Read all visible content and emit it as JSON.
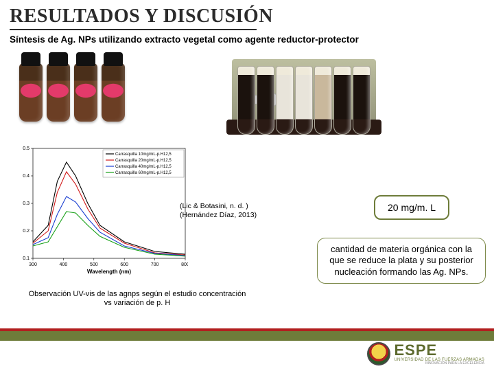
{
  "title": "RESULTADOS Y DISCUSIÓN",
  "subtitle": "Síntesis de Ag. NPs utilizando extracto vegetal como agente reductor-protector",
  "citations": {
    "line1": "(Lic & Botasini, n. d. )",
    "line2": "(Hernández Díaz, 2013)"
  },
  "concentration_label": "20 mg/m. L",
  "organic_text": "cantidad de materia orgánica con la que se reduce la plata y su posterior nucleación formando las Ag. NPs.",
  "chart_caption": "Observación UV-vis de las agnps según el estudio concentración vs variación de p. H",
  "uv_chart": {
    "type": "line",
    "xlabel": "Wavelength (nm)",
    "xlim": [
      300,
      800
    ],
    "xtick_step": 100,
    "ylim": [
      0.1,
      0.5
    ],
    "yticks": [
      0.1,
      0.2,
      0.3,
      0.4,
      0.5
    ],
    "axis_fontsize": 7,
    "line_width": 1.1,
    "background_color": "#ffffff",
    "legend_pos": "top-right",
    "series": [
      {
        "label": "Carrasquilla 10mg/mL-p.H12,5",
        "color": "#000000",
        "x": [
          300,
          350,
          380,
          410,
          440,
          480,
          520,
          600,
          700,
          800
        ],
        "y": [
          0.16,
          0.22,
          0.38,
          0.45,
          0.4,
          0.3,
          0.22,
          0.16,
          0.125,
          0.115
        ]
      },
      {
        "label": "Carrasquilla 20mg/mL-p.H12,5",
        "color": "#d11a1a",
        "x": [
          300,
          350,
          380,
          410,
          440,
          480,
          520,
          600,
          700,
          800
        ],
        "y": [
          0.155,
          0.2,
          0.34,
          0.415,
          0.37,
          0.28,
          0.21,
          0.155,
          0.12,
          0.112
        ]
      },
      {
        "label": "Carrasquilla 40mg/mL-p.H12,5",
        "color": "#1a3fd1",
        "x": [
          300,
          350,
          380,
          410,
          440,
          480,
          520,
          600,
          700,
          800
        ],
        "y": [
          0.15,
          0.175,
          0.26,
          0.325,
          0.305,
          0.245,
          0.195,
          0.145,
          0.118,
          0.11
        ]
      },
      {
        "label": "Carrasquilla 60mg/mL-p.H12,5",
        "color": "#17a017",
        "x": [
          300,
          350,
          380,
          410,
          440,
          480,
          520,
          600,
          700,
          800
        ],
        "y": [
          0.145,
          0.16,
          0.215,
          0.27,
          0.265,
          0.22,
          0.18,
          0.14,
          0.115,
          0.108
        ]
      }
    ]
  },
  "logo": {
    "brand": "ESPE",
    "sub": "UNIVERSIDAD DE LAS FUERZAS ARMADAS",
    "motto": "INNOVACIÓN PARA LA EXCELENCIA"
  },
  "colors": {
    "title_underline": "#2b2b2b",
    "footer_red": "#b11f1f",
    "footer_olive": "#6e7c3a",
    "box_border": "#6e7c3a"
  }
}
